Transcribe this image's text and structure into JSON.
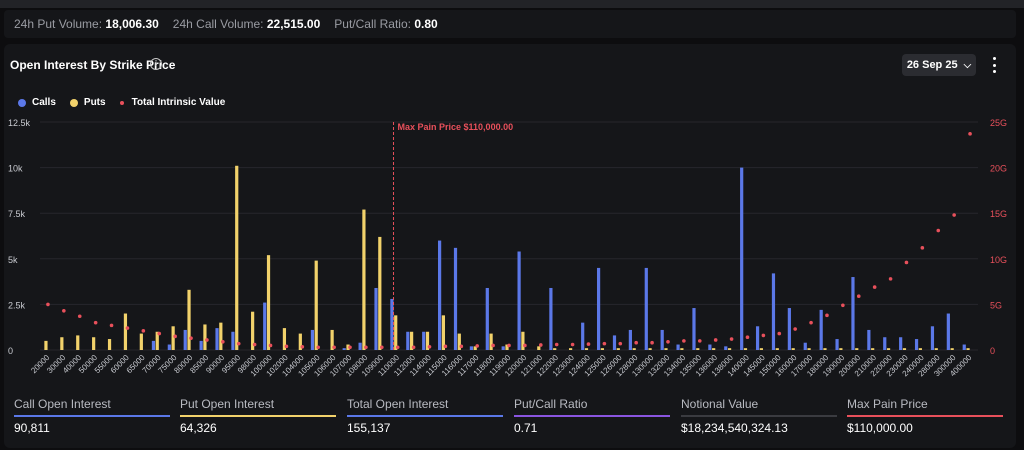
{
  "volume_bar": {
    "put_volume_label": "24h Put Volume:",
    "put_volume_value": "18,006.30",
    "call_volume_label": "24h Call Volume:",
    "call_volume_value": "22,515.00",
    "ratio_label": "Put/Call Ratio:",
    "ratio_value": "0.80"
  },
  "panel": {
    "title": "Open Interest By Strike Price",
    "info_icon": "i",
    "date_select": "26 Sep 25",
    "chevron": "⌄"
  },
  "legend": {
    "calls": "Calls",
    "puts": "Puts",
    "tiv": "Total Intrinsic Value"
  },
  "colors": {
    "calls": "#5b78e8",
    "puts": "#f2d26b",
    "tiv": "#e8505b",
    "max_pain": "#e8505b"
  },
  "chart_data": {
    "type": "bar",
    "categories": [
      "20000",
      "30000",
      "40000",
      "50000",
      "55000",
      "60000",
      "65000",
      "70000",
      "75000",
      "80000",
      "85000",
      "90000",
      "95000",
      "98000",
      "100000",
      "102000",
      "104000",
      "105000",
      "106000",
      "107000",
      "108000",
      "109000",
      "110000",
      "112000",
      "114000",
      "115000",
      "116000",
      "117000",
      "118000",
      "119000",
      "120000",
      "121000",
      "122000",
      "123000",
      "124000",
      "125000",
      "126000",
      "128000",
      "130000",
      "132000",
      "134000",
      "135000",
      "136000",
      "138000",
      "140000",
      "145000",
      "150000",
      "160000",
      "170000",
      "180000",
      "190000",
      "200000",
      "210000",
      "220000",
      "230000",
      "240000",
      "280000",
      "300000",
      "400000"
    ],
    "series": [
      {
        "name": "Calls",
        "axis": "left",
        "values": [
          0,
          0,
          0,
          0,
          0,
          0,
          0,
          500,
          300,
          1100,
          500,
          1200,
          1000,
          0,
          2600,
          0,
          0,
          1100,
          0,
          100,
          400,
          3400,
          2800,
          1000,
          1000,
          6000,
          5600,
          200,
          3400,
          200,
          5400,
          0,
          3400,
          0,
          1500,
          4500,
          800,
          1100,
          4500,
          1100,
          300,
          2300,
          300,
          200,
          10000,
          1300,
          4200,
          2300,
          400,
          2200,
          600,
          4000,
          1100,
          700,
          700,
          600,
          1300,
          2000,
          300
        ]
      },
      {
        "name": "Puts",
        "axis": "left",
        "values": [
          500,
          700,
          800,
          700,
          600,
          2000,
          900,
          1000,
          1300,
          3300,
          1400,
          1500,
          10100,
          2100,
          5200,
          1200,
          900,
          4900,
          1100,
          300,
          7700,
          6200,
          1900,
          1000,
          1000,
          1900,
          900,
          200,
          900,
          300,
          1000,
          200,
          100,
          100,
          100,
          100,
          100,
          100,
          100,
          100,
          100,
          100,
          100,
          100,
          100,
          100,
          100,
          100,
          100,
          100,
          100,
          100,
          100,
          100,
          100,
          100,
          100,
          100,
          100
        ]
      },
      {
        "name": "Total Intrinsic Value",
        "axis": "right",
        "values": [
          5,
          4.3,
          3.7,
          3,
          2.7,
          2.4,
          2.1,
          1.8,
          1.5,
          1.3,
          1.1,
          0.9,
          0.7,
          0.6,
          0.5,
          0.4,
          0.35,
          0.3,
          0.3,
          0.3,
          0.3,
          0.3,
          0.3,
          0.3,
          0.35,
          0.4,
          0.4,
          0.45,
          0.5,
          0.5,
          0.5,
          0.55,
          0.6,
          0.6,
          0.65,
          0.7,
          0.7,
          0.8,
          0.8,
          0.9,
          1,
          1,
          1.1,
          1.2,
          1.4,
          1.6,
          1.8,
          2.3,
          3,
          3.8,
          4.9,
          5.9,
          6.9,
          7.8,
          9.6,
          11.2,
          13.1,
          14.8,
          23.7
        ]
      }
    ],
    "max_pain_label": "Max Pain Price $110,000.00",
    "max_pain_category": "110000",
    "ylim_left": [
      0,
      12500
    ],
    "ylim_right": [
      0,
      25
    ],
    "left_ticks": [
      {
        "v": 0,
        "label": "0"
      },
      {
        "v": 2500,
        "label": "2.5k"
      },
      {
        "v": 5000,
        "label": "5k"
      },
      {
        "v": 7500,
        "label": "7.5k"
      },
      {
        "v": 10000,
        "label": "10k"
      },
      {
        "v": 12500,
        "label": "12.5k"
      }
    ],
    "right_ticks": [
      {
        "v": 0,
        "label": "0"
      },
      {
        "v": 5,
        "label": "5G"
      },
      {
        "v": 10,
        "label": "10G"
      },
      {
        "v": 15,
        "label": "15G"
      },
      {
        "v": 20,
        "label": "20G"
      },
      {
        "v": 25,
        "label": "25G"
      }
    ],
    "grid": "horizontal",
    "legend_position": "top-left"
  },
  "stats": [
    {
      "label": "Call Open Interest",
      "value": "90,811",
      "color": "#5b78e8"
    },
    {
      "label": "Put Open Interest",
      "value": "64,326",
      "color": "#f2d26b"
    },
    {
      "label": "Total Open Interest",
      "value": "155,137",
      "color": "#5b78e8"
    },
    {
      "label": "Put/Call Ratio",
      "value": "0.71",
      "color": "#8a55e0"
    },
    {
      "label": "Notional Value",
      "value": "$18,234,540,324.13",
      "color": "#3a3b40"
    },
    {
      "label": "Max Pain Price",
      "value": "$110,000.00",
      "color": "#e8505b"
    }
  ]
}
